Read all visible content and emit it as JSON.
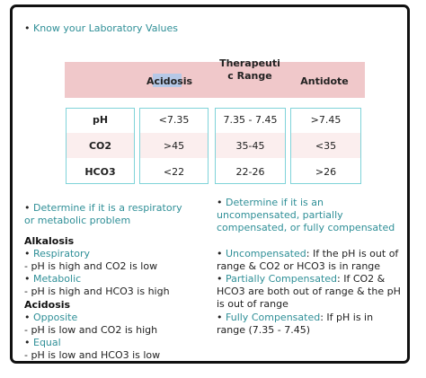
{
  "title": "Know your Laboratory Values",
  "table": {
    "headers": [
      "Acidosis",
      "Therapeuti",
      "c Range",
      "Antidote"
    ],
    "rows": [
      {
        "label": "pH",
        "acidosis": "<7.35",
        "range": "7.35 - 7.45",
        "antidote": ">7.45"
      },
      {
        "label": "CO2",
        "acidosis": ">45",
        "range": "35-45",
        "antidote": "<35"
      },
      {
        "label": "HCO3",
        "acidosis": "<22",
        "range": "22-26",
        "antidote": ">26"
      }
    ]
  },
  "left": {
    "q1": "Determine if it is a respiratory",
    "q2": "or metabolic problem",
    "alkalosis": "Alkalosis",
    "respiratory": "Respiratory",
    "resp_desc": "pH is high and CO2 is low",
    "metabolic": "Metabolic",
    "met_desc": "pH is high and HCO3 is high",
    "acidosis": "Acidosis",
    "opposite": "Opposite",
    "opp_desc": "pH is low and CO2 is high",
    "equal": "Equal",
    "eq_desc": "pH is low and HCO3 is low"
  },
  "right": {
    "q1": "Determine if it is an",
    "q2": "uncompensated, partially",
    "q3": "compensated, or fully compensated",
    "unc_label": "Uncompensated",
    "unc_desc1": ": If the pH is out of",
    "unc_desc2": "range & CO2 or HCO3 is in range",
    "part_label": "Partially Compensated",
    "part_desc1": ": If CO2 &",
    "part_desc2": "HCO3 are both out of range & the pH",
    "part_desc3": "is out of range",
    "full_label": "Fully Compensated",
    "full_desc1": ": If pH is in",
    "full_desc2": "range (7.35 - 7.45)"
  },
  "bullet": "•",
  "dash": "-"
}
